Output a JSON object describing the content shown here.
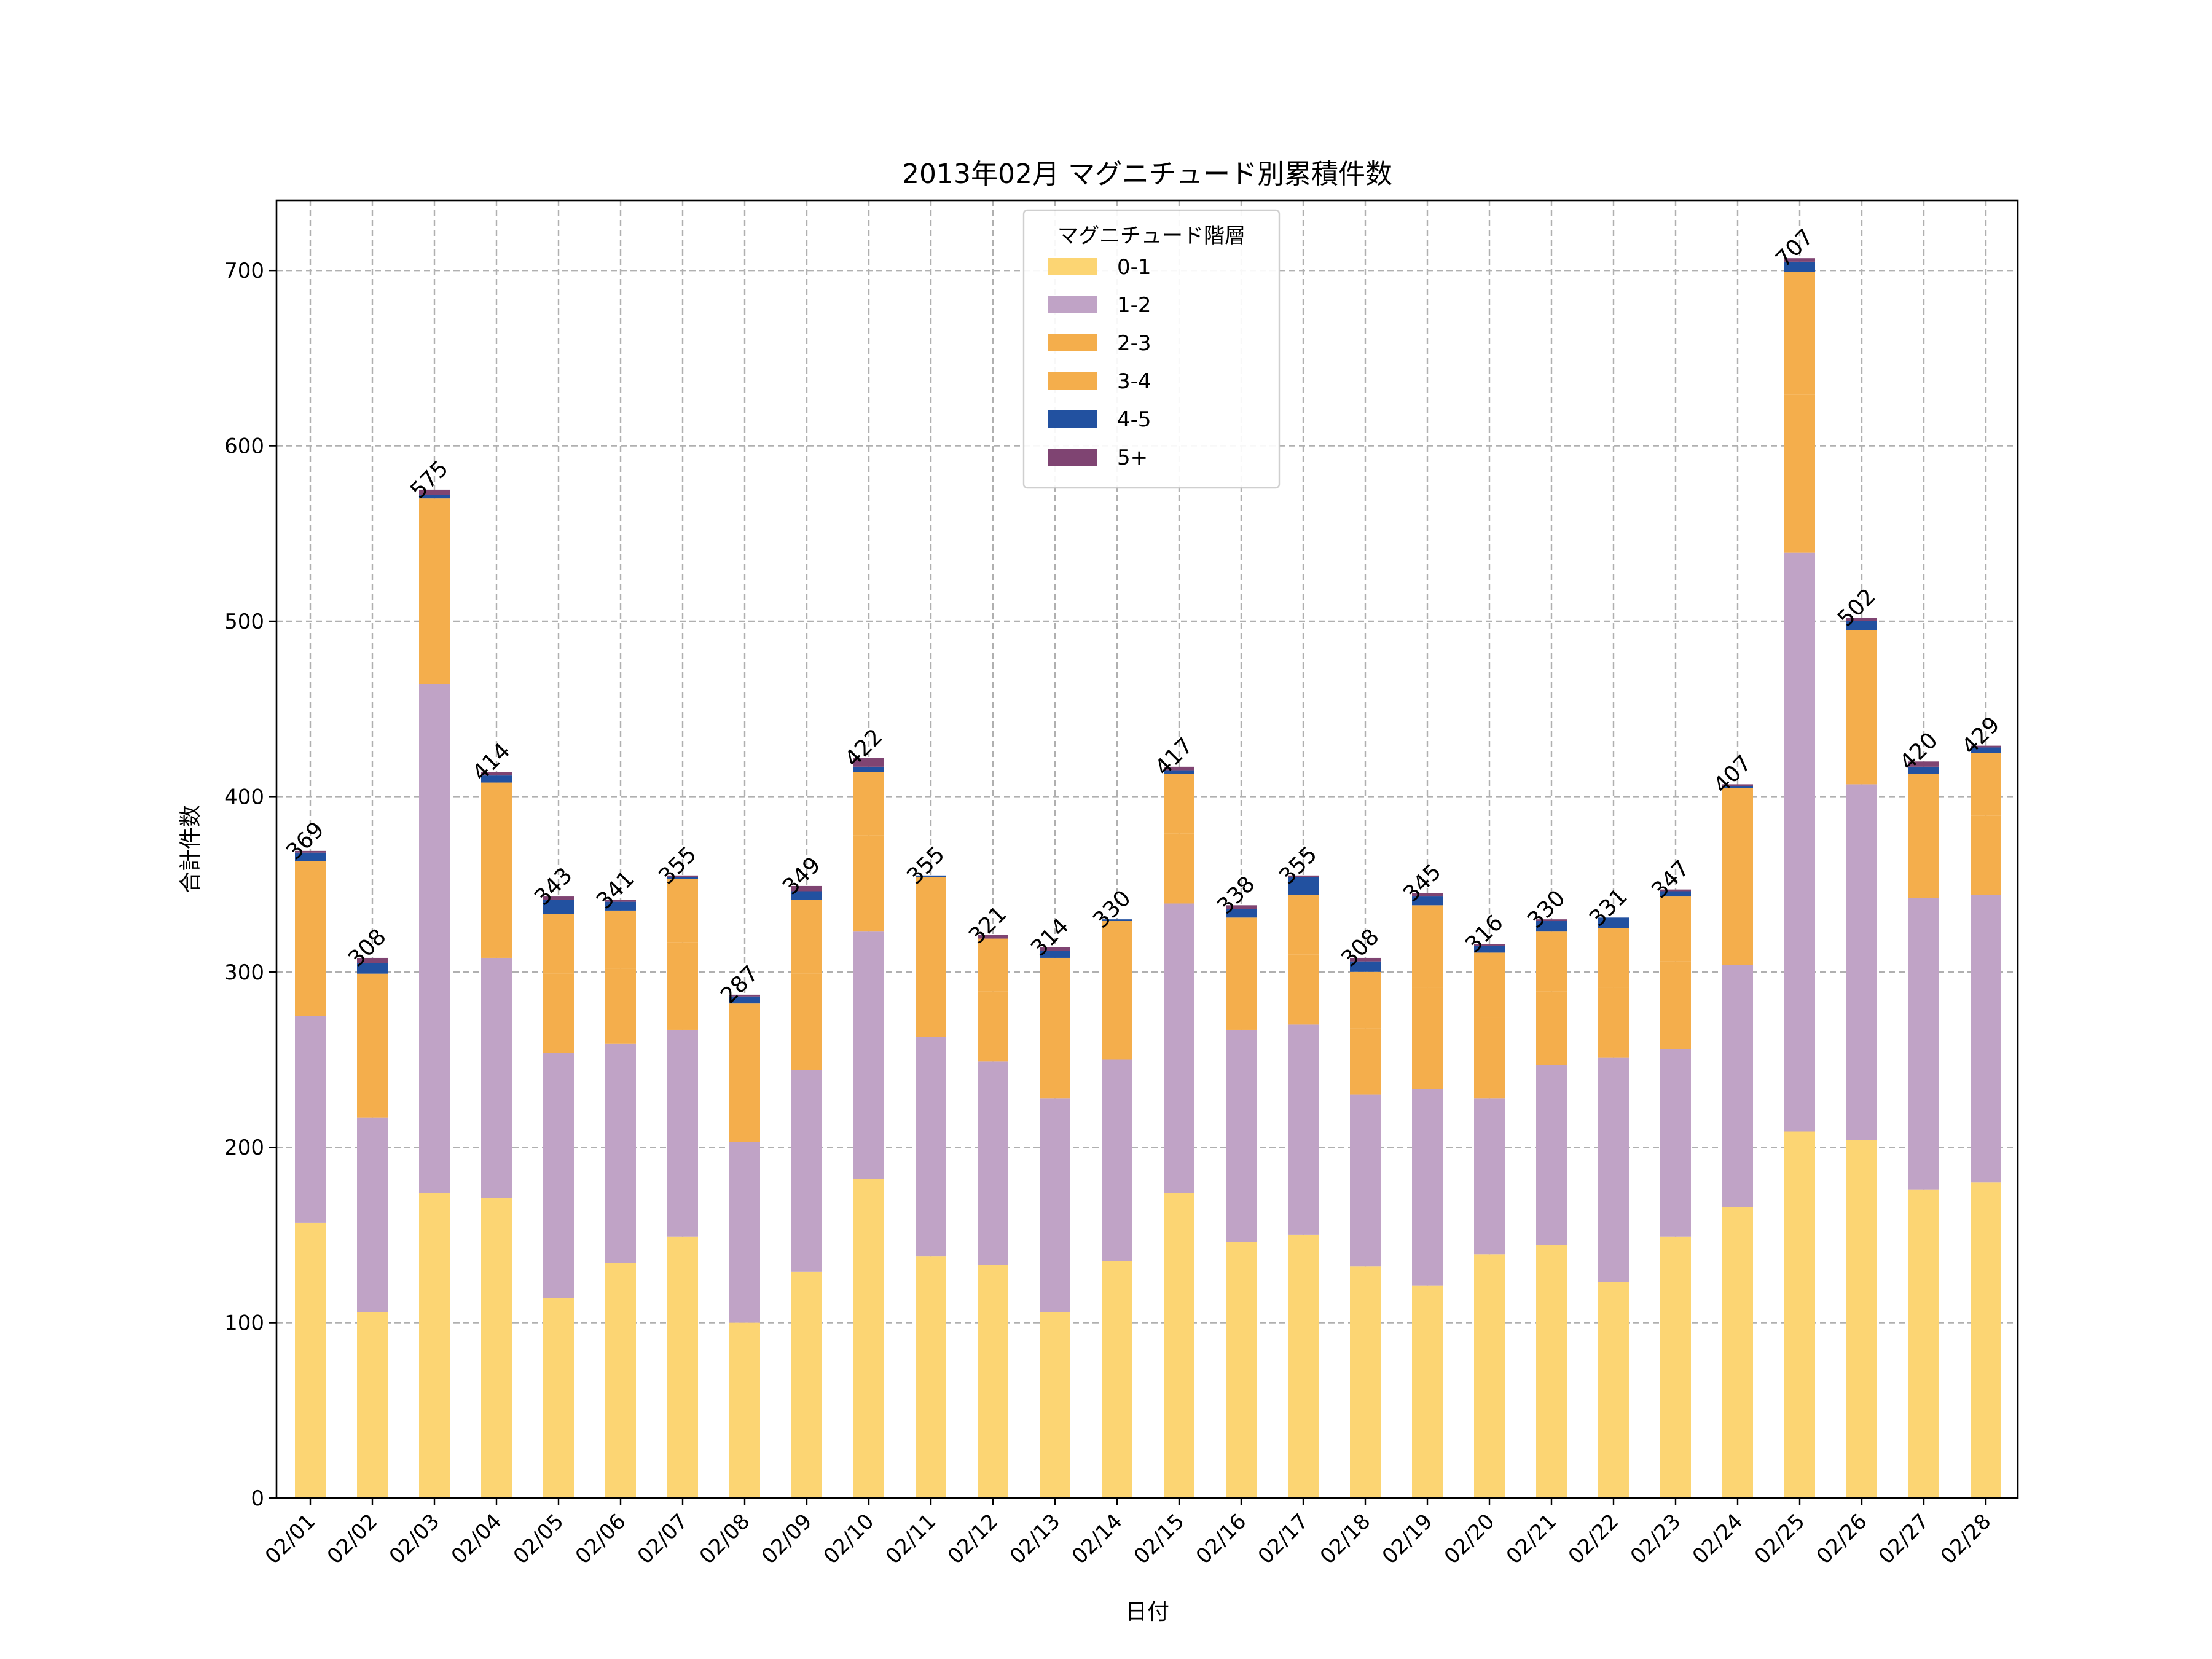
{
  "chart_data": {
    "type": "bar",
    "stacked": true,
    "title": "2013年02月 マグニチュード別累積件数",
    "xlabel": "日付",
    "ylabel": "合計件数",
    "ylim": [
      0,
      740
    ],
    "yticks": [
      0,
      100,
      200,
      300,
      400,
      500,
      600,
      700
    ],
    "grid": true,
    "legend_title": "マグニチュード階層",
    "legend_position": "top-center",
    "categories": [
      "02/01",
      "02/02",
      "02/03",
      "02/04",
      "02/05",
      "02/06",
      "02/07",
      "02/08",
      "02/09",
      "02/10",
      "02/11",
      "02/12",
      "02/13",
      "02/14",
      "02/15",
      "02/16",
      "02/17",
      "02/18",
      "02/19",
      "02/20",
      "02/21",
      "02/22",
      "02/23",
      "02/24",
      "02/25",
      "02/26",
      "02/27",
      "02/28"
    ],
    "series": [
      {
        "name": "0-1",
        "color": "#FCD573",
        "values": [
          157,
          106,
          174,
          171,
          114,
          134,
          149,
          100,
          129,
          182,
          138,
          133,
          106,
          135,
          174,
          146,
          150,
          132,
          121,
          139,
          144,
          123,
          149,
          166,
          209,
          204,
          176,
          180
        ]
      },
      {
        "name": "1-2",
        "color": "#C0A3C6",
        "values": [
          118,
          111,
          290,
          137,
          140,
          125,
          118,
          103,
          115,
          141,
          125,
          116,
          122,
          115,
          165,
          121,
          120,
          98,
          112,
          89,
          103,
          128,
          107,
          138,
          330,
          203,
          166,
          164
        ]
      },
      {
        "name": "2-3",
        "color": "#F4AE4C",
        "values": [
          50,
          48,
          60,
          55,
          45,
          43,
          50,
          44,
          55,
          55,
          50,
          40,
          45,
          45,
          40,
          36,
          40,
          38,
          58,
          46,
          42,
          40,
          50,
          58,
          90,
          48,
          40,
          45
        ]
      },
      {
        "name": "3-4",
        "color": "#F4AE4C",
        "values": [
          38,
          34,
          46,
          45,
          34,
          33,
          36,
          35,
          42,
          36,
          41,
          30,
          35,
          34,
          34,
          28,
          34,
          32,
          47,
          37,
          34,
          34,
          37,
          43,
          70,
          40,
          31,
          36
        ]
      },
      {
        "name": "4-5",
        "color": "#2251A0",
        "values": [
          5,
          6,
          2,
          4,
          8,
          5,
          1,
          4,
          5,
          3,
          1,
          0,
          4,
          1,
          2,
          5,
          10,
          6,
          5,
          4,
          6,
          6,
          3,
          1,
          6,
          5,
          4,
          3
        ]
      },
      {
        "name": "5+",
        "color": "#7F4472",
        "values": [
          1,
          3,
          3,
          2,
          2,
          1,
          1,
          1,
          3,
          5,
          0,
          2,
          2,
          0,
          2,
          2,
          1,
          2,
          2,
          1,
          1,
          0,
          1,
          1,
          2,
          2,
          3,
          1
        ]
      }
    ],
    "totals": [
      369,
      308,
      575,
      414,
      343,
      341,
      355,
      287,
      349,
      422,
      355,
      321,
      314,
      330,
      417,
      338,
      355,
      308,
      345,
      316,
      330,
      331,
      347,
      407,
      707,
      502,
      420,
      429
    ]
  }
}
